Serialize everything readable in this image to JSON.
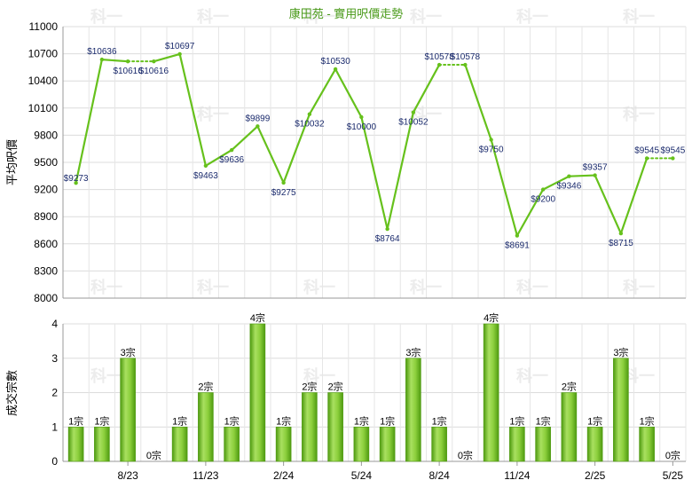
{
  "chart_data": [
    {
      "type": "line",
      "title": "康田苑 - 實用呎價走勢",
      "ylabel": "平均呎價",
      "ylim": [
        8000,
        11000
      ],
      "yticks": [
        8000,
        8300,
        8600,
        8900,
        9200,
        9500,
        9800,
        10100,
        10400,
        10700,
        11000
      ],
      "grid": true,
      "color": "#66c11c",
      "series": [
        {
          "values": [
            9273,
            10636,
            10616,
            10616,
            10697,
            9463,
            9636,
            9899,
            9275,
            10032,
            10530,
            10000,
            8764,
            10052,
            10578,
            10578,
            9750,
            8691,
            9200,
            9346,
            9357,
            8715,
            9545,
            9545
          ],
          "labels": [
            "$9273",
            "$10636",
            "$10616",
            "$10616",
            "$10697",
            "$9463",
            "$9636",
            "$9899",
            "$9275",
            "$10032",
            "$10530",
            "$10000",
            "$8764",
            "$10052",
            "$10578",
            "$10578",
            "$9750",
            "$8691",
            "$9200",
            "$9346",
            "$9357",
            "$8715",
            "$9545",
            "$9545"
          ],
          "dotted_after": [
            2,
            14,
            22
          ]
        }
      ]
    },
    {
      "type": "bar",
      "ylabel": "成交宗數",
      "ylim": [
        0,
        4
      ],
      "yticks": [
        0,
        1,
        2,
        3,
        4
      ],
      "grid": true,
      "color": "#6fbf2a",
      "xticks": [
        {
          "index": 2,
          "label": "8/23"
        },
        {
          "index": 5,
          "label": "11/23"
        },
        {
          "index": 8,
          "label": "2/24"
        },
        {
          "index": 11,
          "label": "5/24"
        },
        {
          "index": 14,
          "label": "8/24"
        },
        {
          "index": 17,
          "label": "11/24"
        },
        {
          "index": 20,
          "label": "2/25"
        },
        {
          "index": 23,
          "label": "5/25"
        }
      ],
      "values": [
        1,
        1,
        3,
        0,
        1,
        2,
        1,
        4,
        1,
        2,
        2,
        1,
        1,
        3,
        1,
        0,
        4,
        1,
        1,
        2,
        1,
        3,
        1,
        0
      ],
      "labels": [
        "1宗",
        "1宗",
        "3宗",
        "0宗",
        "1宗",
        "2宗",
        "1宗",
        "4宗",
        "1宗",
        "2宗",
        "2宗",
        "1宗",
        "1宗",
        "3宗",
        "1宗",
        "0宗",
        "4宗",
        "1宗",
        "1宗",
        "2宗",
        "1宗",
        "3宗",
        "1宗",
        "0宗"
      ]
    }
  ],
  "watermark": "科一"
}
